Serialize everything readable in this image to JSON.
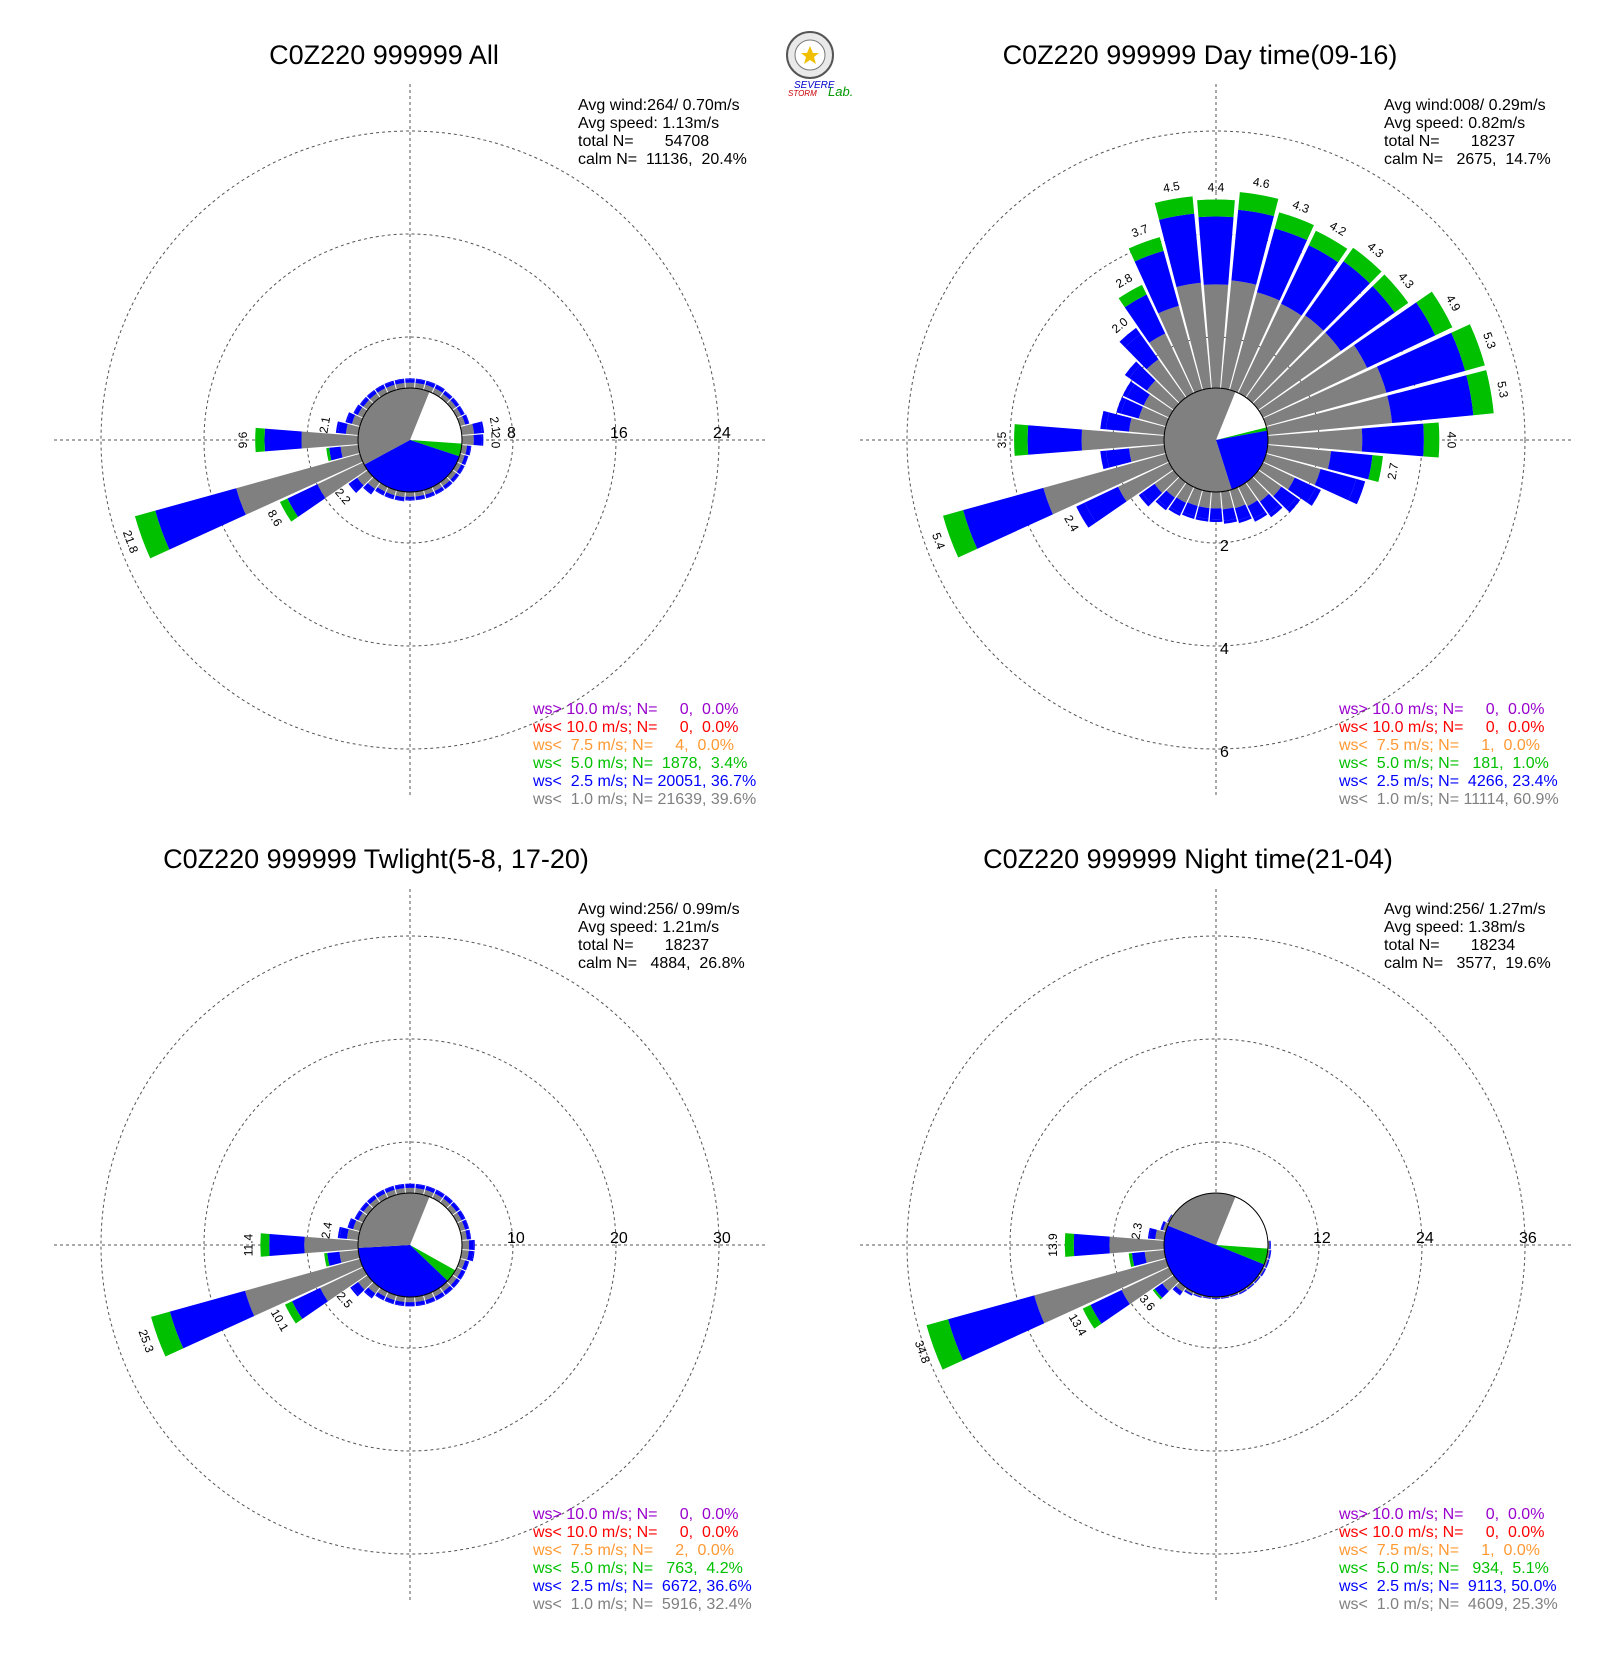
{
  "logo": {
    "text_a": "SEVERE",
    "text_b": "STORM",
    "text_c": "Lab."
  },
  "colors": {
    "calm": "#ffffff",
    "lt1": "#808080",
    "lt2_5": "#0000ff",
    "lt5": "#00c000",
    "lt7_5": "#ff9933",
    "lt10": "#ff0000",
    "gt10": "#9900cc"
  },
  "chart_data": [
    {
      "type": "polar-bar",
      "title": "C0Z220 999999 All",
      "avg_wind": "Avg wind:264/ 0.70m/s",
      "avg_speed": "Avg speed: 1.13m/s",
      "total": "total N=       54708",
      "calm": "calm N=  11136,  20.4%",
      "rmax": 24,
      "ring_labels": [
        "8",
        "16",
        "24"
      ],
      "ring_label_axis": "east",
      "calm_pie": {
        "white": 0.2,
        "gray": 0.39,
        "blue": 0.37,
        "green": 0.04
      },
      "sectors": [
        {
          "deg": 0,
          "v": 0.9
        },
        {
          "deg": 10,
          "v": 0.9
        },
        {
          "deg": 20,
          "v": 0.9
        },
        {
          "deg": 30,
          "v": 0.9
        },
        {
          "deg": 40,
          "v": 0.8
        },
        {
          "deg": 50,
          "v": 0.8
        },
        {
          "deg": 60,
          "v": 0.8
        },
        {
          "deg": 70,
          "v": 0.9
        },
        {
          "deg": 80,
          "v": 2.1,
          "label": "2.1"
        },
        {
          "deg": 90,
          "v": 2.0,
          "label": "2.0"
        },
        {
          "deg": 100,
          "v": 0.9
        },
        {
          "deg": 110,
          "v": 0.8
        },
        {
          "deg": 120,
          "v": 0.8
        },
        {
          "deg": 130,
          "v": 0.8
        },
        {
          "deg": 140,
          "v": 0.8
        },
        {
          "deg": 150,
          "v": 0.8
        },
        {
          "deg": 160,
          "v": 0.8
        },
        {
          "deg": 170,
          "v": 0.8
        },
        {
          "deg": 180,
          "v": 0.8
        },
        {
          "deg": 190,
          "v": 0.9
        },
        {
          "deg": 200,
          "v": 0.9
        },
        {
          "deg": 210,
          "v": 0.9
        },
        {
          "deg": 220,
          "v": 1.4
        },
        {
          "deg": 230,
          "v": 2.2,
          "label": "2.2"
        },
        {
          "deg": 240,
          "v": 8.6,
          "label": "8.6"
        },
        {
          "deg": 250,
          "v": 21.8,
          "label": "21.8"
        },
        {
          "deg": 260,
          "v": 3.0
        },
        {
          "deg": 270,
          "v": 9.6,
          "label": "9.6"
        },
        {
          "deg": 280,
          "v": 2.1,
          "label": "2.1"
        },
        {
          "deg": 290,
          "v": 1.4
        },
        {
          "deg": 300,
          "v": 1.0
        },
        {
          "deg": 310,
          "v": 0.9
        },
        {
          "deg": 320,
          "v": 0.9
        },
        {
          "deg": 330,
          "v": 0.9
        },
        {
          "deg": 340,
          "v": 0.9
        },
        {
          "deg": 350,
          "v": 0.9
        }
      ],
      "legend": [
        {
          "text": "ws> 10.0 m/s; N=     0,  0.0%",
          "color": "#9900cc"
        },
        {
          "text": "ws< 10.0 m/s; N=     0,  0.0%",
          "color": "#ff0000"
        },
        {
          "text": "ws<  7.5 m/s; N=     4,  0.0%",
          "color": "#ff9933"
        },
        {
          "text": "ws<  5.0 m/s; N=  1878,  3.4%",
          "color": "#00c000"
        },
        {
          "text": "ws<  2.5 m/s; N= 20051, 36.7%",
          "color": "#0000ff"
        },
        {
          "text": "ws<  1.0 m/s; N= 21639, 39.6%",
          "color": "#808080"
        }
      ]
    },
    {
      "type": "polar-bar",
      "title": "C0Z220 999999 Day time(09-16)",
      "avg_wind": "Avg wind:008/ 0.29m/s",
      "avg_speed": "Avg speed: 0.82m/s",
      "total": "total N=       18237",
      "calm": "calm N=   2675,  14.7%",
      "rmax": 6,
      "ring_labels": [
        "2",
        "4",
        "6"
      ],
      "ring_label_axis": "south",
      "calm_pie": {
        "white": 0.15,
        "gray": 0.61,
        "blue": 0.23,
        "green": 0.01
      },
      "sectors": [
        {
          "deg": 0,
          "v": 4.4,
          "label": "4.4"
        },
        {
          "deg": 10,
          "v": 4.6,
          "label": "4.6"
        },
        {
          "deg": 20,
          "v": 4.3,
          "label": "4.3"
        },
        {
          "deg": 30,
          "v": 4.2,
          "label": "4.2"
        },
        {
          "deg": 40,
          "v": 4.3,
          "label": "4.3"
        },
        {
          "deg": 50,
          "v": 4.3,
          "label": "4.3"
        },
        {
          "deg": 60,
          "v": 4.9,
          "label": "4.9"
        },
        {
          "deg": 70,
          "v": 5.3,
          "label": "5.3"
        },
        {
          "deg": 80,
          "v": 5.3,
          "label": "5.3"
        },
        {
          "deg": 90,
          "v": 4.0,
          "label": "4.0"
        },
        {
          "deg": 100,
          "v": 2.7,
          "label": "2.7"
        },
        {
          "deg": 110,
          "v": 2.4
        },
        {
          "deg": 120,
          "v": 1.5
        },
        {
          "deg": 130,
          "v": 1.2
        },
        {
          "deg": 140,
          "v": 1.0
        },
        {
          "deg": 150,
          "v": 0.9
        },
        {
          "deg": 160,
          "v": 0.8
        },
        {
          "deg": 170,
          "v": 0.75
        },
        {
          "deg": 180,
          "v": 0.7
        },
        {
          "deg": 190,
          "v": 0.7
        },
        {
          "deg": 200,
          "v": 0.7
        },
        {
          "deg": 210,
          "v": 0.75
        },
        {
          "deg": 220,
          "v": 0.8
        },
        {
          "deg": 230,
          "v": 1.0
        },
        {
          "deg": 240,
          "v": 2.4,
          "label": "2.4"
        },
        {
          "deg": 250,
          "v": 5.4,
          "label": "5.4"
        },
        {
          "deg": 260,
          "v": 1.5
        },
        {
          "deg": 270,
          "v": 3.5,
          "label": "3.5"
        },
        {
          "deg": 280,
          "v": 1.5
        },
        {
          "deg": 290,
          "v": 1.2
        },
        {
          "deg": 300,
          "v": 1.2
        },
        {
          "deg": 310,
          "v": 1.4
        },
        {
          "deg": 320,
          "v": 2.0,
          "label": "2.0"
        },
        {
          "deg": 330,
          "v": 2.8,
          "label": "2.8"
        },
        {
          "deg": 340,
          "v": 3.7,
          "label": "3.7"
        },
        {
          "deg": 350,
          "v": 4.5,
          "label": "4.5"
        }
      ],
      "legend": [
        {
          "text": "ws> 10.0 m/s; N=     0,  0.0%",
          "color": "#9900cc"
        },
        {
          "text": "ws< 10.0 m/s; N=     0,  0.0%",
          "color": "#ff0000"
        },
        {
          "text": "ws<  7.5 m/s; N=     1,  0.0%",
          "color": "#ff9933"
        },
        {
          "text": "ws<  5.0 m/s; N=   181,  1.0%",
          "color": "#00c000"
        },
        {
          "text": "ws<  2.5 m/s; N=  4266, 23.4%",
          "color": "#0000ff"
        },
        {
          "text": "ws<  1.0 m/s; N= 11114, 60.9%",
          "color": "#808080"
        }
      ]
    },
    {
      "type": "polar-bar",
      "title": "C0Z220 999999 Twlight(5-8, 17-20)",
      "avg_wind": "Avg wind:256/ 0.99m/s",
      "avg_speed": "Avg speed: 1.21m/s",
      "total": "total N=       18237",
      "calm": "calm N=   4884,  26.8%",
      "rmax": 30,
      "ring_labels": [
        "10",
        "20",
        "30"
      ],
      "ring_label_axis": "east",
      "calm_pie": {
        "white": 0.27,
        "gray": 0.32,
        "blue": 0.37,
        "green": 0.04
      },
      "sectors": [
        {
          "deg": 0,
          "v": 1.1
        },
        {
          "deg": 10,
          "v": 1.1
        },
        {
          "deg": 20,
          "v": 1.1
        },
        {
          "deg": 30,
          "v": 1.1
        },
        {
          "deg": 40,
          "v": 1.1
        },
        {
          "deg": 50,
          "v": 1.1
        },
        {
          "deg": 60,
          "v": 1.1
        },
        {
          "deg": 70,
          "v": 1.1
        },
        {
          "deg": 80,
          "v": 1.1
        },
        {
          "deg": 90,
          "v": 1.5
        },
        {
          "deg": 100,
          "v": 1.5
        },
        {
          "deg": 110,
          "v": 1.1
        },
        {
          "deg": 120,
          "v": 1.1
        },
        {
          "deg": 130,
          "v": 1.1
        },
        {
          "deg": 140,
          "v": 1.1
        },
        {
          "deg": 150,
          "v": 1.1
        },
        {
          "deg": 160,
          "v": 1.1
        },
        {
          "deg": 170,
          "v": 1.1
        },
        {
          "deg": 180,
          "v": 1.1
        },
        {
          "deg": 190,
          "v": 1.1
        },
        {
          "deg": 200,
          "v": 1.1
        },
        {
          "deg": 210,
          "v": 1.1
        },
        {
          "deg": 220,
          "v": 1.6
        },
        {
          "deg": 230,
          "v": 2.5,
          "label": "2.5"
        },
        {
          "deg": 240,
          "v": 10.1,
          "label": "10.1"
        },
        {
          "deg": 250,
          "v": 25.3,
          "label": "25.3"
        },
        {
          "deg": 260,
          "v": 4.0
        },
        {
          "deg": 270,
          "v": 11.4,
          "label": "11.4"
        },
        {
          "deg": 280,
          "v": 2.4,
          "label": "2.4"
        },
        {
          "deg": 290,
          "v": 1.5
        },
        {
          "deg": 300,
          "v": 1.1
        },
        {
          "deg": 310,
          "v": 1.1
        },
        {
          "deg": 320,
          "v": 1.1
        },
        {
          "deg": 330,
          "v": 1.1
        },
        {
          "deg": 340,
          "v": 1.1
        },
        {
          "deg": 350,
          "v": 1.1
        }
      ],
      "legend": [
        {
          "text": "ws> 10.0 m/s; N=     0,  0.0%",
          "color": "#9900cc"
        },
        {
          "text": "ws< 10.0 m/s; N=     0,  0.0%",
          "color": "#ff0000"
        },
        {
          "text": "ws<  7.5 m/s; N=     2,  0.0%",
          "color": "#ff9933"
        },
        {
          "text": "ws<  5.0 m/s; N=   763,  4.2%",
          "color": "#00c000"
        },
        {
          "text": "ws<  2.5 m/s; N=  6672, 36.6%",
          "color": "#0000ff"
        },
        {
          "text": "ws<  1.0 m/s; N=  5916, 32.4%",
          "color": "#808080"
        }
      ]
    },
    {
      "type": "polar-bar",
      "title": "C0Z220 999999 Night time(21-04)",
      "avg_wind": "Avg wind:256/ 1.27m/s",
      "avg_speed": "Avg speed: 1.38m/s",
      "total": "total N=       18234",
      "calm": "calm N=   3577,  19.6%",
      "rmax": 36,
      "ring_labels": [
        "12",
        "24",
        "36"
      ],
      "ring_label_axis": "east",
      "calm_pie": {
        "white": 0.2,
        "gray": 0.25,
        "blue": 0.5,
        "green": 0.05
      },
      "sectors": [
        {
          "deg": 0,
          "v": 0.0
        },
        {
          "deg": 10,
          "v": 0.0
        },
        {
          "deg": 20,
          "v": 0.0
        },
        {
          "deg": 30,
          "v": 0.0
        },
        {
          "deg": 40,
          "v": 0.0
        },
        {
          "deg": 50,
          "v": 0.0
        },
        {
          "deg": 60,
          "v": 0.0
        },
        {
          "deg": 70,
          "v": 0.0
        },
        {
          "deg": 80,
          "v": 0.0
        },
        {
          "deg": 90,
          "v": 0.4
        },
        {
          "deg": 100,
          "v": 0.5
        },
        {
          "deg": 110,
          "v": 0.5
        },
        {
          "deg": 120,
          "v": 0.5
        },
        {
          "deg": 130,
          "v": 0.4
        },
        {
          "deg": 140,
          "v": 0.4
        },
        {
          "deg": 150,
          "v": 0.4
        },
        {
          "deg": 160,
          "v": 0.3
        },
        {
          "deg": 170,
          "v": 0.3
        },
        {
          "deg": 180,
          "v": 0.3
        },
        {
          "deg": 190,
          "v": 0.3
        },
        {
          "deg": 200,
          "v": 0.4
        },
        {
          "deg": 210,
          "v": 0.6
        },
        {
          "deg": 220,
          "v": 1.4
        },
        {
          "deg": 230,
          "v": 3.6,
          "label": "3.6"
        },
        {
          "deg": 240,
          "v": 13.4,
          "label": "13.4"
        },
        {
          "deg": 250,
          "v": 34.8,
          "label": "34.8"
        },
        {
          "deg": 260,
          "v": 5.0
        },
        {
          "deg": 270,
          "v": 13.9,
          "label": "13.9"
        },
        {
          "deg": 280,
          "v": 2.3,
          "label": "2.3"
        },
        {
          "deg": 290,
          "v": 0.8
        },
        {
          "deg": 300,
          "v": 0.3
        },
        {
          "deg": 310,
          "v": 0.0
        },
        {
          "deg": 320,
          "v": 0.0
        },
        {
          "deg": 330,
          "v": 0.0
        },
        {
          "deg": 340,
          "v": 0.0
        },
        {
          "deg": 350,
          "v": 0.0
        }
      ],
      "legend": [
        {
          "text": "ws> 10.0 m/s; N=     0,  0.0%",
          "color": "#9900cc"
        },
        {
          "text": "ws< 10.0 m/s; N=     0,  0.0%",
          "color": "#ff0000"
        },
        {
          "text": "ws<  7.5 m/s; N=     1,  0.0%",
          "color": "#ff9933"
        },
        {
          "text": "ws<  5.0 m/s; N=   934,  5.1%",
          "color": "#00c000"
        },
        {
          "text": "ws<  2.5 m/s; N=  9113, 50.0%",
          "color": "#0000ff"
        },
        {
          "text": "ws<  1.0 m/s; N=  4609, 25.3%",
          "color": "#808080"
        }
      ]
    }
  ]
}
